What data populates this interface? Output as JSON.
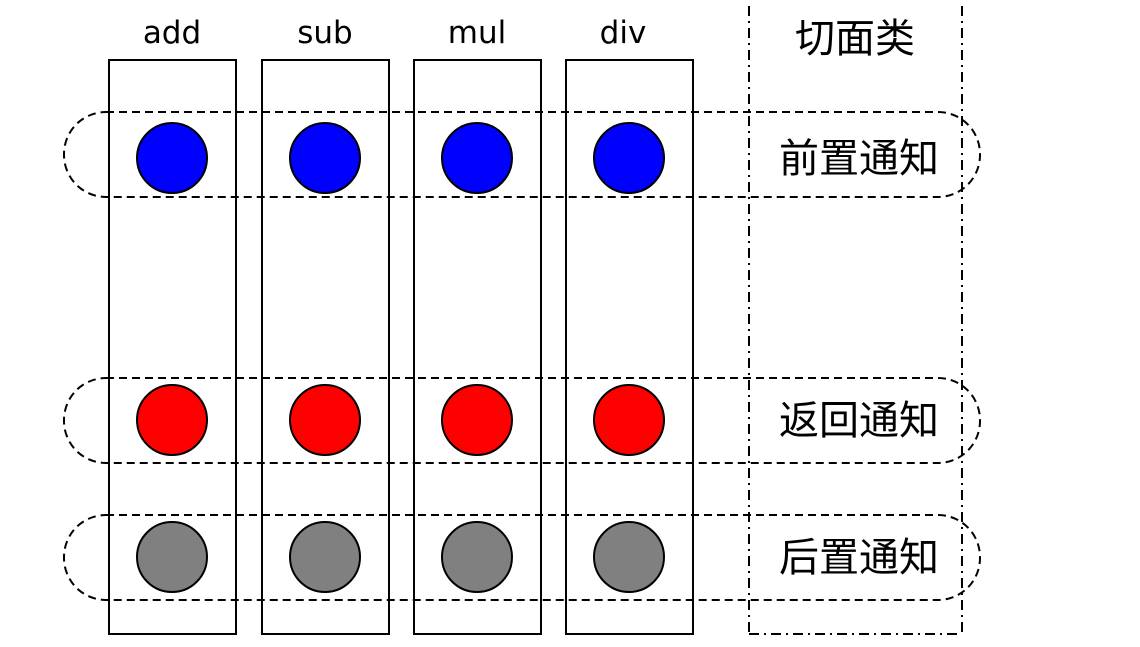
{
  "methods": [
    {
      "label": "add"
    },
    {
      "label": "sub"
    },
    {
      "label": "mul"
    },
    {
      "label": "div"
    }
  ],
  "aspect": {
    "label": "切面类"
  },
  "advices": [
    {
      "label": "前置通知",
      "color": "#0000ff"
    },
    {
      "label": "返回通知",
      "color": "#ff0000"
    },
    {
      "label": "后置通知",
      "color": "#808080"
    }
  ]
}
